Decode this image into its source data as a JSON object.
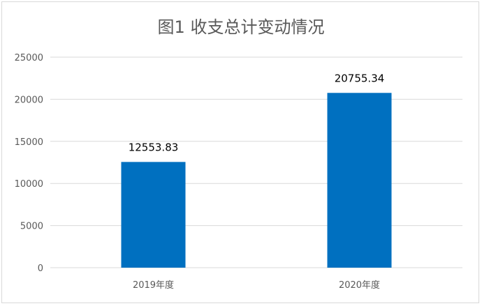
{
  "chart_data": {
    "type": "bar",
    "title": "图1 收支总计变动情况",
    "xlabel": "",
    "ylabel": "",
    "categories": [
      "2019年度",
      "2020年度"
    ],
    "values": [
      12553.83,
      20755.34
    ],
    "data_labels": [
      "12553.83",
      "20755.34"
    ],
    "ylim": [
      0,
      25000
    ],
    "yticks": [
      0,
      5000,
      10000,
      15000,
      20000,
      25000
    ],
    "ytick_labels": [
      "0",
      "5000",
      "10000",
      "15000",
      "20000",
      "25000"
    ],
    "grid": true,
    "legend": "none",
    "bar_color": "#0070C0"
  }
}
